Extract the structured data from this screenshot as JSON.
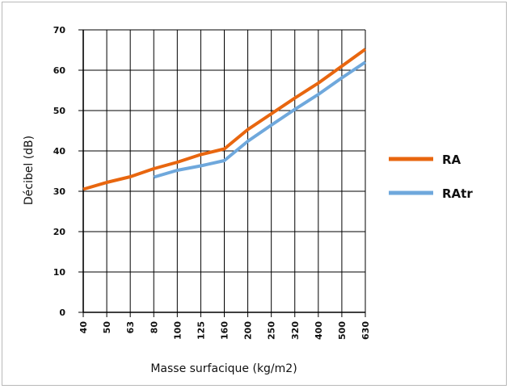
{
  "chart_data": {
    "type": "line",
    "title": "",
    "xlabel": "Masse surfacique (kg/m2)",
    "ylabel": "Décibel (dB)",
    "categories": [
      "40",
      "50",
      "63",
      "80",
      "100",
      "125",
      "160",
      "200",
      "250",
      "320",
      "400",
      "500",
      "630"
    ],
    "ylim": [
      0,
      70
    ],
    "yticks": [
      "0",
      "10",
      "20",
      "30",
      "40",
      "50",
      "60",
      "70"
    ],
    "grid": true,
    "legend_position": "right",
    "series": [
      {
        "name": "RA",
        "color": "#e8660f",
        "values": [
          30.5,
          32.2,
          33.6,
          35.6,
          37.2,
          39.1,
          40.5,
          45.3,
          49.2,
          53.1,
          56.8,
          61.0,
          65.2
        ]
      },
      {
        "name": "RAtr",
        "color": "#6fa8dc",
        "values": [
          null,
          null,
          null,
          33.5,
          35.2,
          36.3,
          37.6,
          42.4,
          46.4,
          50.3,
          54.0,
          58.1,
          62.0
        ]
      }
    ]
  }
}
